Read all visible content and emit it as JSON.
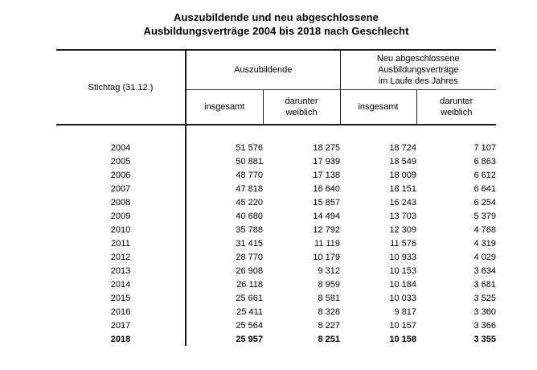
{
  "title": {
    "line1": "Auszubildende und neu abgeschlossene",
    "line2": "Ausbildungsverträge 2004 bis 2018 nach Geschlecht"
  },
  "table": {
    "col1_header": "Stichtag (31.12.)",
    "group1_header": "Auszubildende",
    "group2_header": {
      "l1": "Neu abgeschlossene",
      "l2": "Ausbildungsverträge",
      "l3": "im Laufe des Jahres"
    },
    "subheaders": [
      {
        "l1": "insgesamt",
        "l2": ""
      },
      {
        "l1": "darunter",
        "l2": "weiblich"
      },
      {
        "l1": "insgesamt",
        "l2": ""
      },
      {
        "l1": "darunter",
        "l2": "weiblich"
      }
    ],
    "rows": [
      {
        "year": "2004",
        "values": [
          "51 576",
          "18 275",
          "18 724",
          "7 107"
        ],
        "bold": false
      },
      {
        "year": "2005",
        "values": [
          "50 881",
          "17 939",
          "18 549",
          "6 863"
        ],
        "bold": false
      },
      {
        "year": "2006",
        "values": [
          "48 770",
          "17 138",
          "18 009",
          "6 612"
        ],
        "bold": false
      },
      {
        "year": "2007",
        "values": [
          "47 818",
          "16 640",
          "18 151",
          "6 641"
        ],
        "bold": false
      },
      {
        "year": "2008",
        "values": [
          "45 220",
          "15 857",
          "16 243",
          "6 254"
        ],
        "bold": false
      },
      {
        "year": "2009",
        "values": [
          "40 680",
          "14 494",
          "13 703",
          "5 379"
        ],
        "bold": false
      },
      {
        "year": "2010",
        "values": [
          "35 788",
          "12 792",
          "12 309",
          "4 768"
        ],
        "bold": false
      },
      {
        "year": "2011",
        "values": [
          "31 415",
          "11 119",
          "11 576",
          "4 319"
        ],
        "bold": false
      },
      {
        "year": "2012",
        "values": [
          "28 770",
          "10 179",
          "10 933",
          "4 029"
        ],
        "bold": false
      },
      {
        "year": "2013",
        "values": [
          "26 908",
          "9 312",
          "10 153",
          "3 634"
        ],
        "bold": false
      },
      {
        "year": "2014",
        "values": [
          "26 118",
          "8 959",
          "10 184",
          "3 681"
        ],
        "bold": false
      },
      {
        "year": "2015",
        "values": [
          "25 661",
          "8 581",
          "10 033",
          "3 525"
        ],
        "bold": false
      },
      {
        "year": "2016",
        "values": [
          "25 411",
          "8 328",
          "9 817",
          "3 360"
        ],
        "bold": false
      },
      {
        "year": "2017",
        "values": [
          "25 564",
          "8 227",
          "10 157",
          "3 366"
        ],
        "bold": false
      },
      {
        "year": "2018",
        "values": [
          "25 957",
          "8 251",
          "10 158",
          "3 355"
        ],
        "bold": true
      }
    ]
  },
  "colors": {
    "background": "#ffffff",
    "text": "#000000",
    "line": "#1a1a1a"
  },
  "chart_data": {
    "type": "table",
    "title": "Auszubildende und neu abgeschlossene Ausbildungsverträge 2004 bis 2018 nach Geschlecht",
    "columns": [
      "Stichtag (31.12.)",
      "Auszubildende insgesamt",
      "Auszubildende darunter weiblich",
      "Neu abgeschlossene Ausbildungsverträge im Laufe des Jahres insgesamt",
      "Neu abgeschlossene Ausbildungsverträge im Laufe des Jahres darunter weiblich"
    ],
    "rows": [
      [
        2004,
        51576,
        18275,
        18724,
        7107
      ],
      [
        2005,
        50881,
        17939,
        18549,
        6863
      ],
      [
        2006,
        48770,
        17138,
        18009,
        6612
      ],
      [
        2007,
        47818,
        16640,
        18151,
        6641
      ],
      [
        2008,
        45220,
        15857,
        16243,
        6254
      ],
      [
        2009,
        40680,
        14494,
        13703,
        5379
      ],
      [
        2010,
        35788,
        12792,
        12309,
        4768
      ],
      [
        2011,
        31415,
        11119,
        11576,
        4319
      ],
      [
        2012,
        28770,
        10179,
        10933,
        4029
      ],
      [
        2013,
        26908,
        9312,
        10153,
        3634
      ],
      [
        2014,
        26118,
        8959,
        10184,
        3681
      ],
      [
        2015,
        25661,
        8581,
        10033,
        3525
      ],
      [
        2016,
        25411,
        8328,
        9817,
        3360
      ],
      [
        2017,
        25564,
        8227,
        10157,
        3366
      ],
      [
        2018,
        25957,
        8251,
        10158,
        3355
      ]
    ],
    "notes": "Last row (2018) is printed in bold. Thousands separated by spaces in display."
  }
}
